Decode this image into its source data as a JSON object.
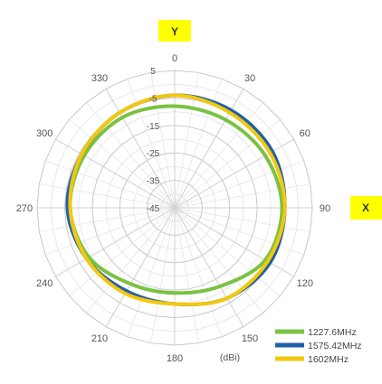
{
  "chart_data": {
    "type": "polar-line",
    "angle_unit": "degrees",
    "angle_ticks": [
      "0",
      "30",
      "60",
      "90",
      "120",
      "150",
      "180",
      "210",
      "240",
      "270",
      "300",
      "330"
    ],
    "radial_ticks": [
      5,
      -5,
      -15,
      -25,
      -35,
      -45
    ],
    "radial_range": [
      -45,
      5
    ],
    "unit_label": "(dBi)",
    "axis_tags": {
      "y": "Y",
      "x": "X"
    },
    "grid": true,
    "legend_position": "bottom-right",
    "angles": [
      0,
      30,
      60,
      90,
      120,
      150,
      180,
      210,
      240,
      270,
      300,
      330
    ],
    "series": [
      {
        "name": "1227.6MHz",
        "color": "#7bc142",
        "values": [
          -8,
          -8,
          -7,
          -6,
          -7,
          -12,
          -14,
          -13,
          -9,
          -7,
          -7,
          -7
        ]
      },
      {
        "name": "1575.42MHz",
        "color": "#1f5fa8",
        "values": [
          -4,
          -4,
          -4,
          -5,
          -5,
          -7,
          -10,
          -10,
          -8,
          -6,
          -6,
          -5
        ]
      },
      {
        "name": "1602MHz",
        "color": "#f2c80f",
        "values": [
          -4,
          -5,
          -5,
          -5,
          -6,
          -7,
          -10,
          -9,
          -8,
          -7,
          -6,
          -5
        ]
      }
    ]
  }
}
